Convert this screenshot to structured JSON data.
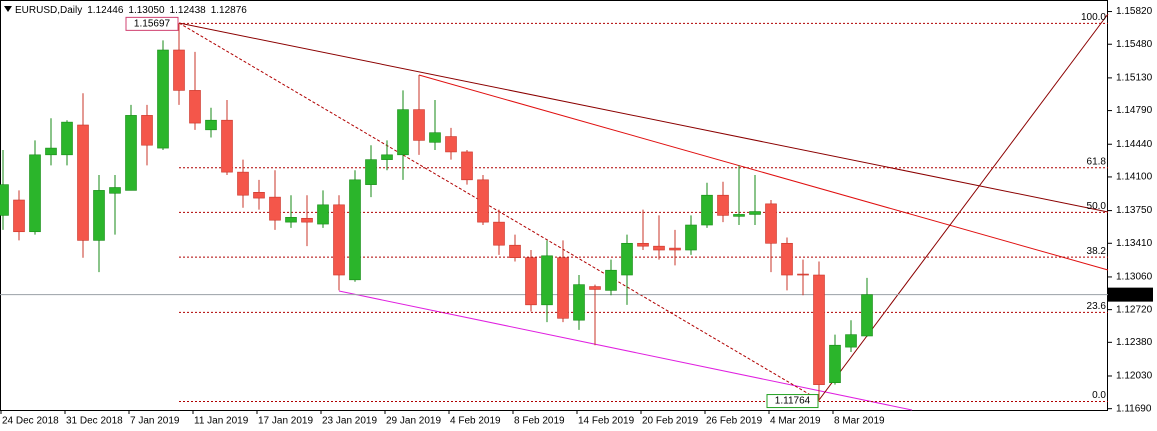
{
  "chart_data": {
    "type": "candlestick",
    "symbol": "EURUSD,Daily",
    "header_quote": [
      {
        "value": 1.12446,
        "label": "1.12446"
      },
      {
        "value": 1.1305,
        "label": "1.13050"
      },
      {
        "value": 1.12438,
        "label": "1.12438"
      },
      {
        "value": 1.12876,
        "label": "1.12876"
      }
    ],
    "categories": [
      "24 Dec 2018",
      null,
      null,
      null,
      "31 Dec 2018",
      null,
      null,
      null,
      "7 Jan 2019",
      null,
      null,
      null,
      "11 Jan 2019",
      null,
      null,
      null,
      "17 Jan 2019",
      null,
      null,
      null,
      "23 Jan 2019",
      null,
      null,
      null,
      "29 Jan 2019",
      null,
      null,
      null,
      "4 Feb 2019",
      null,
      null,
      null,
      "8 Feb 2019",
      null,
      null,
      null,
      "14 Feb 2019",
      null,
      null,
      null,
      "20 Feb 2019",
      null,
      null,
      null,
      "26 Feb 2019",
      null,
      null,
      null,
      "4 Mar 2019",
      null,
      null,
      null,
      "8 Mar 2019",
      null,
      null
    ],
    "open": [
      1.137,
      1.1386,
      1.1353,
      1.1433,
      1.1433,
      1.1464,
      1.1344,
      1.1393,
      1.1396,
      1.1474,
      1.144,
      1.1542,
      1.15,
      1.1459,
      1.1469,
      1.1415,
      1.1394,
      1.1389,
      1.1363,
      1.1367,
      1.1361,
      1.1381,
      1.1303,
      1.1402,
      1.1428,
      1.1433,
      1.148,
      1.1446,
      1.1452,
      1.1436,
      1.1407,
      1.1363,
      1.1339,
      1.1326,
      1.1277,
      1.1326,
      1.1261,
      1.1296,
      1.1292,
      1.1308,
      1.1341,
      1.1338,
      1.1336,
      1.1334,
      1.136,
      1.1391,
      1.1369,
      1.1371,
      1.1382,
      1.1341,
      1.1309,
      1.1308,
      1.1196,
      1.1233,
      1.12446
    ],
    "high": [
      1.1438,
      1.1396,
      1.1448,
      1.1471,
      1.1469,
      1.1497,
      1.1412,
      1.1412,
      1.1485,
      1.1485,
      1.1552,
      1.15697,
      1.154,
      1.1482,
      1.149,
      1.1428,
      1.1407,
      1.1417,
      1.1391,
      1.1391,
      1.1396,
      1.1391,
      1.1417,
      1.1443,
      1.1448,
      1.15,
      1.1516,
      1.149,
      1.1461,
      1.1438,
      1.1412,
      1.1376,
      1.135,
      1.1334,
      1.1344,
      1.1344,
      1.1308,
      1.1298,
      1.1324,
      1.135,
      1.1376,
      1.137,
      1.1355,
      1.137,
      1.1404,
      1.1405,
      1.1422,
      1.1412,
      1.1386,
      1.1347,
      1.1324,
      1.1322,
      1.1246,
      1.1261,
      1.1305
    ],
    "low": [
      1.1355,
      1.1344,
      1.135,
      1.1422,
      1.1422,
      1.1326,
      1.1311,
      1.135,
      1.1396,
      1.1422,
      1.1438,
      1.1485,
      1.1459,
      1.1451,
      1.1412,
      1.1378,
      1.1376,
      1.1355,
      1.1357,
      1.1338,
      1.1357,
      1.1292,
      1.1301,
      1.1389,
      1.1417,
      1.1407,
      1.1433,
      1.1438,
      1.1428,
      1.1402,
      1.136,
      1.1329,
      1.1322,
      1.127,
      1.1259,
      1.1259,
      1.1251,
      1.1235,
      1.1287,
      1.1277,
      1.1334,
      1.1324,
      1.1318,
      1.1329,
      1.1357,
      1.1363,
      1.136,
      1.136,
      1.1311,
      1.1292,
      1.1287,
      1.11764,
      1.1194,
      1.1228,
      1.12438
    ],
    "close": [
      1.1402,
      1.1353,
      1.1433,
      1.144,
      1.1467,
      1.1344,
      1.1396,
      1.1399,
      1.1474,
      1.1443,
      1.1542,
      1.15,
      1.1466,
      1.1469,
      1.1415,
      1.1391,
      1.1388,
      1.1365,
      1.1368,
      1.1363,
      1.1381,
      1.1308,
      1.1407,
      1.1428,
      1.1433,
      1.148,
      1.1448,
      1.1456,
      1.1436,
      1.1407,
      1.1363,
      1.1339,
      1.1326,
      1.1277,
      1.1328,
      1.1263,
      1.1298,
      1.1293,
      1.1313,
      1.1341,
      1.1338,
      1.1334,
      1.1334,
      1.136,
      1.1391,
      1.137,
      1.1371,
      1.1374,
      1.1341,
      1.1308,
      1.1308,
      1.1194,
      1.1235,
      1.1246,
      1.12876
    ],
    "up_color": "#2bb52b",
    "down_color": "#f4564a",
    "ylim": [
      1.1167,
      1.1594
    ],
    "yticks": [
      {
        "value": 1.1582,
        "label": "1.15820"
      },
      {
        "value": 1.1548,
        "label": "1.15480"
      },
      {
        "value": 1.1513,
        "label": "1.15130"
      },
      {
        "value": 1.1479,
        "label": "1.14790"
      },
      {
        "value": 1.1444,
        "label": "1.14440"
      },
      {
        "value": 1.141,
        "label": "1.14100"
      },
      {
        "value": 1.1375,
        "label": "1.13750"
      },
      {
        "value": 1.1341,
        "label": "1.13410"
      },
      {
        "value": 1.1306,
        "label": "1.13060"
      },
      {
        "value": 1.1272,
        "label": "1.12720"
      },
      {
        "value": 1.1238,
        "label": "1.12380"
      },
      {
        "value": 1.1203,
        "label": "1.12030"
      },
      {
        "value": 1.1169,
        "label": "1.11690"
      }
    ],
    "current_price": {
      "value": 1.12876,
      "label": "1.12876"
    },
    "fib_levels": [
      {
        "value": 100,
        "label": "100.0",
        "price": 1.15697
      },
      {
        "value": 61.8,
        "label": "61.8",
        "price": 1.14195
      },
      {
        "value": 50,
        "label": "50.0",
        "price": 1.13731
      },
      {
        "value": 38.2,
        "label": "38.2",
        "price": 1.13266
      },
      {
        "value": 23.6,
        "label": "23.6",
        "price": 1.12692
      },
      {
        "value": 0,
        "label": "0.0",
        "price": 1.11764
      }
    ],
    "swing_high": {
      "value": 1.15697,
      "label": "1.15697"
    },
    "swing_low": {
      "value": 1.11764,
      "label": "1.11764"
    }
  }
}
